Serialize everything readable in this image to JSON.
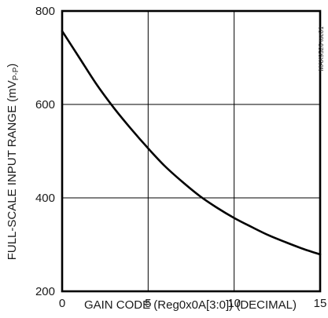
{
  "chart_data": {
    "type": "line",
    "title": "",
    "xlabel": "GAIN CODE (Reg0x0A[3:0]) (DECIMAL)",
    "ylabel": {
      "prefix": "FULL-SCALE INPUT RANGE (mV",
      "subscript": "P-P",
      "suffix": ")"
    },
    "xlim": [
      0,
      15
    ],
    "ylim": [
      200,
      800
    ],
    "xticks": [
      0,
      5,
      10,
      15
    ],
    "yticks": [
      200,
      400,
      600,
      800
    ],
    "grid": true,
    "legend": "none",
    "figure_id": "MAX9526 toc01",
    "series": [
      {
        "color": "#000000",
        "x": [
          0,
          1,
          2,
          3,
          4,
          5,
          6,
          7,
          8,
          9,
          10,
          11,
          12,
          13,
          14,
          15
        ],
        "y": [
          757,
          700,
          643,
          593,
          548,
          506,
          467,
          434,
          404,
          379,
          357,
          338,
          320,
          305,
          291,
          279
        ]
      }
    ]
  }
}
